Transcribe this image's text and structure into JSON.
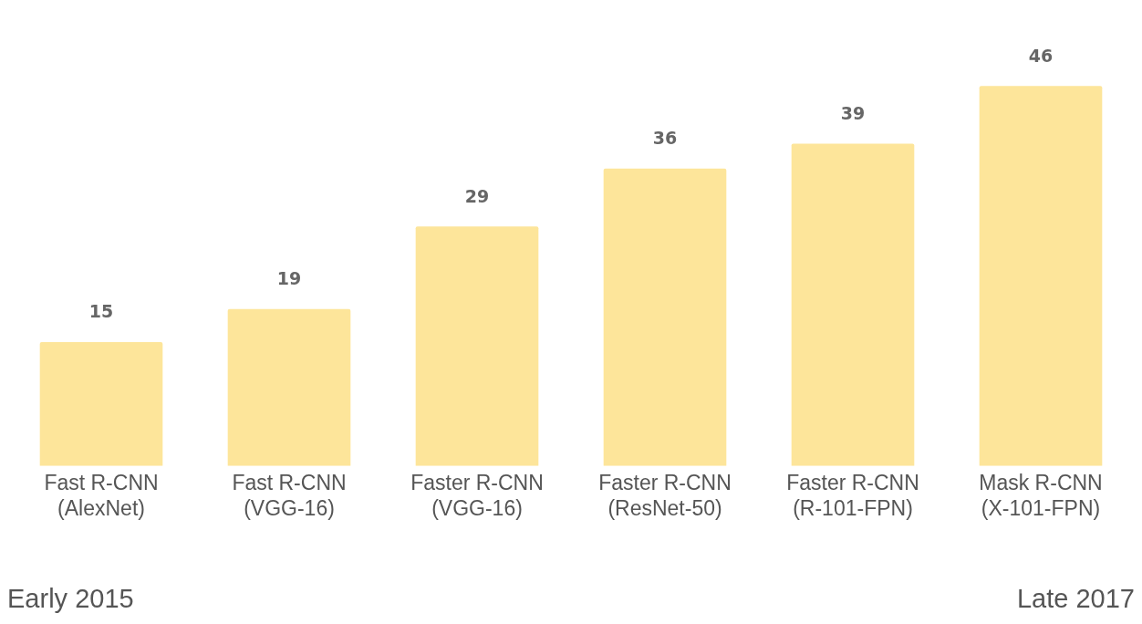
{
  "chart_data": {
    "type": "bar",
    "categories": [
      "Fast R-CNN\n(AlexNet)",
      "Fast R-CNN\n(VGG-16)",
      "Faster R-CNN\n(VGG-16)",
      "Faster R-CNN\n(ResNet-50)",
      "Faster R-CNN\n(R-101-FPN)",
      "Mask R-CNN\n(X-101-FPN)"
    ],
    "values": [
      15,
      19,
      29,
      36,
      39,
      46
    ],
    "color": "#fde59a",
    "data_labels": true,
    "tick_labels": "x",
    "grid": false,
    "legend": false,
    "annotations": [
      "Early 2015",
      "Late 2017"
    ]
  }
}
